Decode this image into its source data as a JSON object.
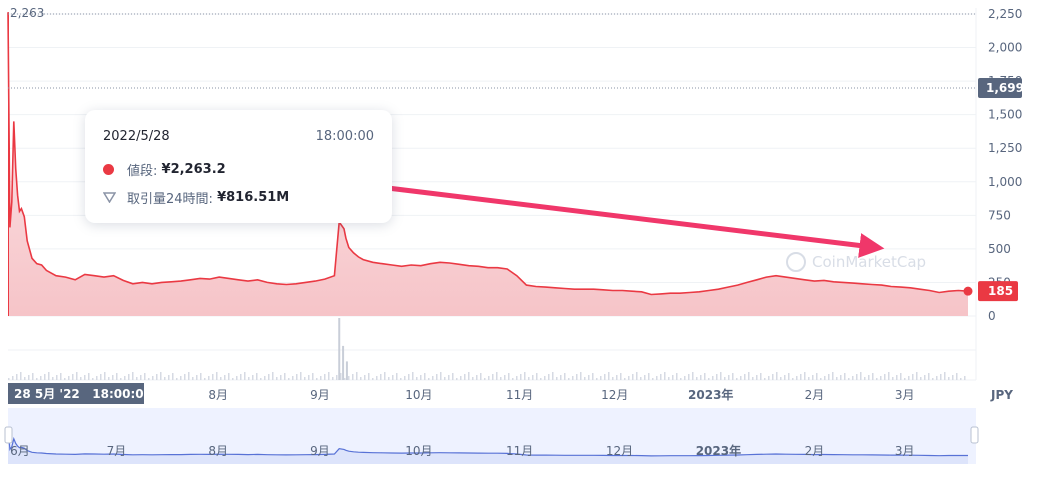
{
  "chart_data": {
    "type": "area",
    "currency": "JPY",
    "y_ticks": [
      "2,250",
      "2,000",
      "1,750",
      "1,500",
      "1,250",
      "1,000",
      "750",
      "500",
      "250",
      "0"
    ],
    "y_tick_values": [
      2250,
      2000,
      1750,
      1500,
      1250,
      1000,
      750,
      500,
      250,
      0
    ],
    "ylim": [
      0,
      2250
    ],
    "top_label": "2,263",
    "high_line_label": "1,699",
    "high_line_value": 1699,
    "current_price_label": "185",
    "current_price_value": 185,
    "x_ticks": [
      {
        "label": "8月",
        "t": 0.219
      },
      {
        "label": "9月",
        "t": 0.325
      },
      {
        "label": "10月",
        "t": 0.428
      },
      {
        "label": "11月",
        "t": 0.533
      },
      {
        "label": "12月",
        "t": 0.632
      },
      {
        "label": "2023年",
        "t": 0.732,
        "bold": true
      },
      {
        "label": "2月",
        "t": 0.84
      },
      {
        "label": "3月",
        "t": 0.934
      }
    ],
    "crosshair_label": "28 5月 '22   18:00:00",
    "navigator_ticks": [
      {
        "label": "6月",
        "t": 0.0
      },
      {
        "label": "7月",
        "t": 0.113
      },
      {
        "label": "8月",
        "t": 0.219
      },
      {
        "label": "9月",
        "t": 0.325
      },
      {
        "label": "10月",
        "t": 0.428
      },
      {
        "label": "11月",
        "t": 0.533
      },
      {
        "label": "12月",
        "t": 0.637
      },
      {
        "label": "2023年",
        "t": 0.74,
        "bold": true
      },
      {
        "label": "2月",
        "t": 0.84
      },
      {
        "label": "3月",
        "t": 0.934
      }
    ],
    "series": [
      {
        "t": [
          0.0,
          0.002,
          0.004,
          0.006,
          0.008,
          0.01,
          0.012,
          0.014,
          0.017,
          0.02,
          0.025,
          0.03,
          0.035,
          0.04,
          0.05,
          0.06,
          0.07,
          0.08,
          0.09,
          0.1,
          0.11,
          0.12,
          0.13,
          0.14,
          0.15,
          0.16,
          0.17,
          0.18,
          0.19,
          0.2,
          0.21,
          0.22,
          0.23,
          0.24,
          0.25,
          0.26,
          0.27,
          0.28,
          0.29,
          0.3,
          0.31,
          0.32,
          0.33,
          0.34,
          0.345,
          0.35,
          0.352,
          0.355,
          0.36,
          0.365,
          0.37,
          0.38,
          0.39,
          0.4,
          0.41,
          0.42,
          0.43,
          0.44,
          0.45,
          0.46,
          0.47,
          0.48,
          0.49,
          0.5,
          0.51,
          0.52,
          0.53,
          0.54,
          0.55,
          0.56,
          0.57,
          0.58,
          0.59,
          0.6,
          0.61,
          0.62,
          0.63,
          0.64,
          0.65,
          0.66,
          0.67,
          0.68,
          0.69,
          0.7,
          0.71,
          0.72,
          0.73,
          0.74,
          0.75,
          0.76,
          0.77,
          0.78,
          0.79,
          0.8,
          0.81,
          0.82,
          0.83,
          0.84,
          0.85,
          0.86,
          0.87,
          0.88,
          0.89,
          0.9,
          0.91,
          0.92,
          0.93,
          0.94,
          0.95,
          0.96,
          0.97,
          0.98,
          0.99,
          1.0
        ],
        "y": [
          2263,
          660,
          850,
          1450,
          1100,
          900,
          780,
          800,
          740,
          560,
          430,
          390,
          380,
          340,
          300,
          290,
          270,
          310,
          300,
          290,
          300,
          265,
          240,
          250,
          240,
          250,
          255,
          260,
          270,
          280,
          275,
          290,
          280,
          270,
          260,
          270,
          250,
          240,
          235,
          240,
          250,
          260,
          275,
          300,
          700,
          650,
          580,
          510,
          470,
          440,
          420,
          400,
          390,
          380,
          370,
          380,
          375,
          390,
          400,
          395,
          385,
          375,
          370,
          360,
          360,
          350,
          300,
          230,
          220,
          215,
          210,
          205,
          200,
          200,
          200,
          195,
          190,
          190,
          185,
          180,
          160,
          165,
          170,
          170,
          175,
          180,
          190,
          200,
          215,
          230,
          250,
          270,
          290,
          300,
          290,
          280,
          270,
          260,
          265,
          255,
          250,
          245,
          240,
          235,
          230,
          220,
          215,
          210,
          200,
          190,
          175,
          185,
          190,
          185
        ]
      }
    ],
    "volume_spike": [
      {
        "t": 0.344,
        "rel": 1.0
      },
      {
        "t": 0.348,
        "rel": 0.55
      },
      {
        "t": 0.352,
        "rel": 0.3
      }
    ]
  },
  "tooltip": {
    "date": "2022/5/28",
    "time": "18:00:00",
    "price_label": "値段:",
    "price_value": "¥2,263.2",
    "volume_label": "取引量24時間:",
    "volume_value": "¥816.51M"
  },
  "watermark": "CoinMarketCap",
  "colors": {
    "line": "#ea3943",
    "area_top": "#fde8ea",
    "area_bottom": "#f6c4c8",
    "arrow": "#f0376a",
    "axis_text": "#58667e",
    "label_bg": "#58667e",
    "navigator_bg": "#eef2ff",
    "navigator_line": "#5872d6"
  }
}
